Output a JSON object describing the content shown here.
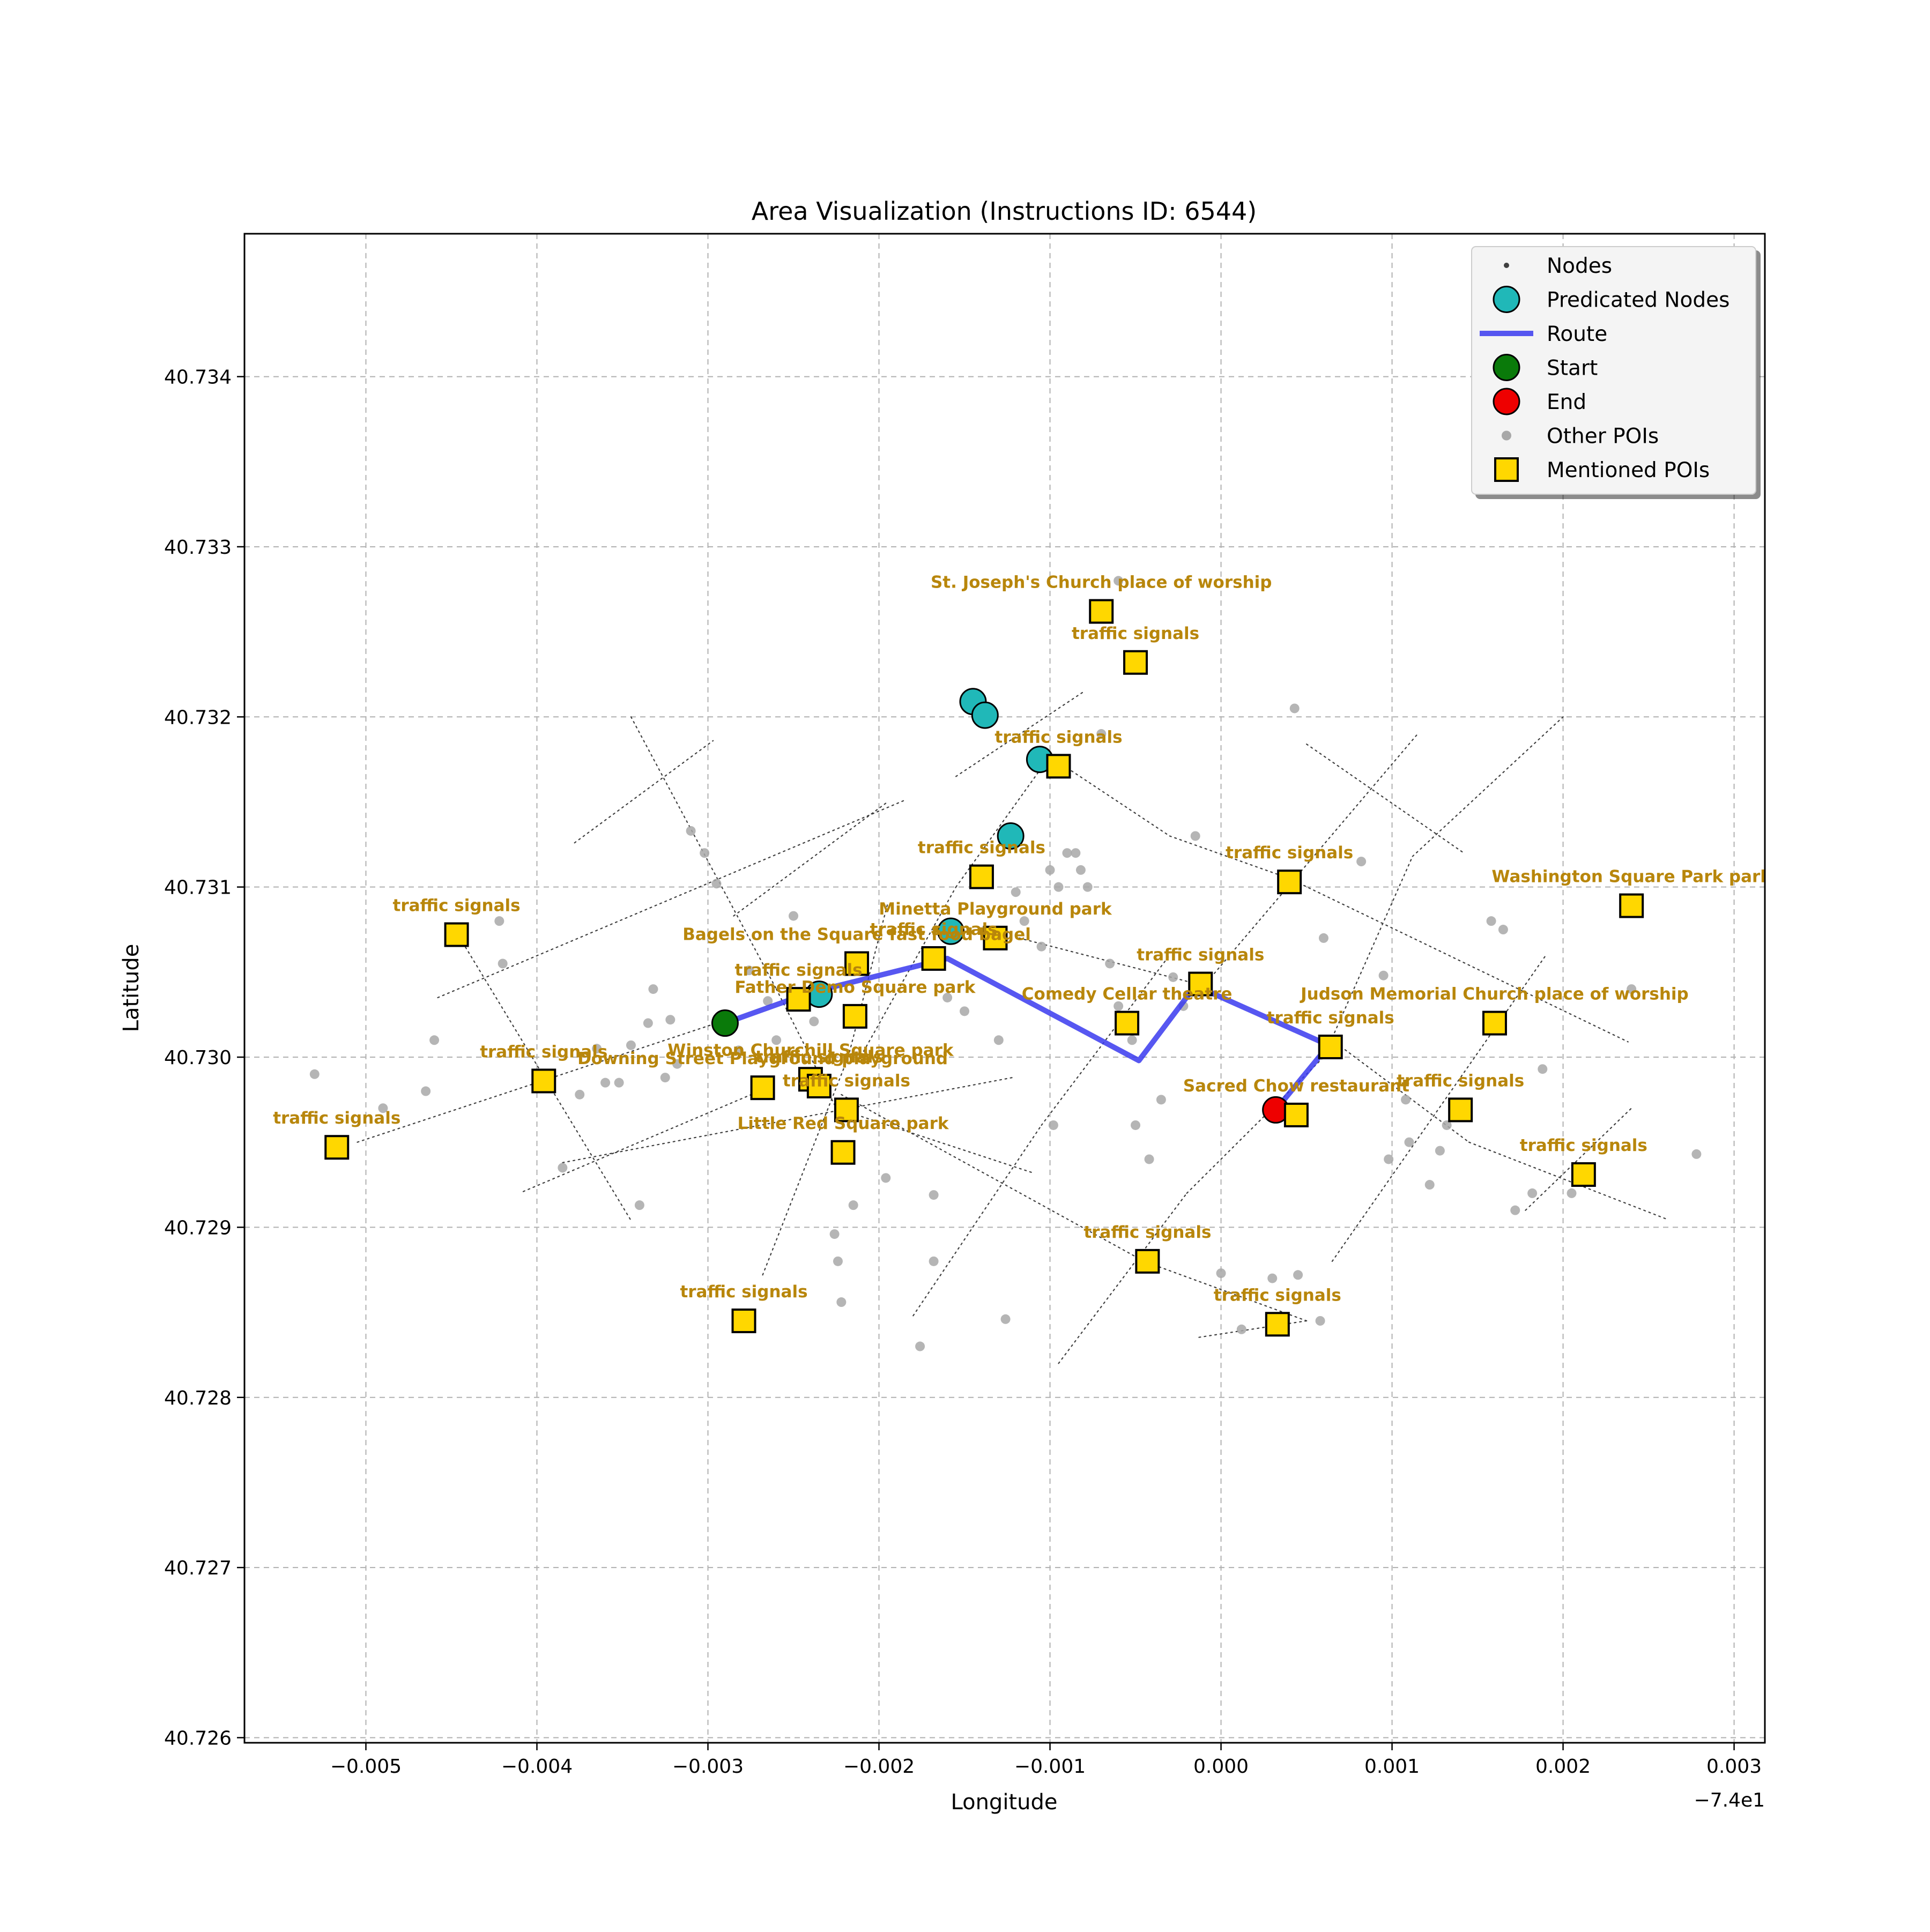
{
  "title": "Area Visualization (Instructions ID: 6544)",
  "xlabel": "Longitude",
  "ylabel": "Latitude",
  "offset_label": "−7.4e1",
  "x_ticks": [
    {
      "value": -0.005,
      "label": "−0.005"
    },
    {
      "value": -0.004,
      "label": "−0.004"
    },
    {
      "value": -0.003,
      "label": "−0.003"
    },
    {
      "value": -0.002,
      "label": "−0.002"
    },
    {
      "value": -0.001,
      "label": "−0.001"
    },
    {
      "value": 0.0,
      "label": "0.000"
    },
    {
      "value": 0.001,
      "label": "0.001"
    },
    {
      "value": 0.002,
      "label": "0.002"
    },
    {
      "value": 0.003,
      "label": "0.003"
    }
  ],
  "y_ticks": [
    {
      "value": 40.726,
      "label": "40.726"
    },
    {
      "value": 40.727,
      "label": "40.727"
    },
    {
      "value": 40.728,
      "label": "40.728"
    },
    {
      "value": 40.729,
      "label": "40.729"
    },
    {
      "value": 40.73,
      "label": "40.730"
    },
    {
      "value": 40.731,
      "label": "40.731"
    },
    {
      "value": 40.732,
      "label": "40.732"
    },
    {
      "value": 40.733,
      "label": "40.733"
    },
    {
      "value": 40.734,
      "label": "40.734"
    }
  ],
  "legend": [
    {
      "key": "nodes",
      "label": "Nodes"
    },
    {
      "key": "predicated",
      "label": "Predicated Nodes"
    },
    {
      "key": "route",
      "label": "Route"
    },
    {
      "key": "start",
      "label": "Start"
    },
    {
      "key": "end",
      "label": "End"
    },
    {
      "key": "other",
      "label": "Other POIs"
    },
    {
      "key": "mentioned",
      "label": "Mentioned POIs"
    }
  ],
  "colors": {
    "route": "#3a3aee",
    "predicated": "#20b8b8",
    "start": "#0a7a0a",
    "end": "#ee0000",
    "mentioned": "#ffd700",
    "poi_label": "#b8860b",
    "other": "#a8a8a8",
    "node": "#404040"
  },
  "chart_data": {
    "type": "map",
    "x_offset": -74.0,
    "xlim": [
      -0.00571,
      0.00318
    ],
    "ylim": [
      40.72597,
      40.73484
    ],
    "grid": true,
    "legend_position": "top-right",
    "streets": [
      [
        [
          -0.00458,
          40.73035
        ],
        [
          -0.00185,
          40.73151
        ]
      ],
      [
        [
          -0.00505,
          40.7295
        ],
        [
          -0.00295,
          40.7302
        ]
      ],
      [
        [
          -0.00408,
          40.72921
        ],
        [
          -0.0027,
          40.7298
        ]
      ],
      [
        [
          -0.00385,
          40.72938
        ],
        [
          -0.00122,
          40.72988
        ]
      ],
      [
        [
          -0.00378,
          40.73126
        ],
        [
          -0.00297,
          40.73186
        ]
      ],
      [
        [
          -0.00345,
          40.732
        ],
        [
          -0.0026,
          40.7304
        ]
      ],
      [
        [
          -0.0026,
          40.7304
        ],
        [
          -0.00225,
          40.7297
        ]
      ],
      [
        [
          -0.00225,
          40.7297
        ],
        [
          -0.0011,
          40.72932
        ]
      ],
      [
        [
          -0.00445,
          40.7307
        ],
        [
          -0.00345,
          40.72904
        ]
      ],
      [
        [
          -0.00285,
          40.73083
        ],
        [
          -0.00195,
          40.7315
        ]
      ],
      [
        [
          -0.00268,
          40.72872
        ],
        [
          -0.00218,
          40.73
        ]
      ],
      [
        [
          -0.00218,
          40.73
        ],
        [
          -0.00195,
          40.7309
        ]
      ],
      [
        [
          -0.00155,
          40.73165
        ],
        [
          -0.0008,
          40.73215
        ]
      ],
      [
        [
          -0.00212,
          40.72998
        ],
        [
          -0.00155,
          40.731
        ]
      ],
      [
        [
          -0.00155,
          40.731
        ],
        [
          -0.00105,
          40.7317
        ]
      ],
      [
        [
          -0.0009,
          40.7317
        ],
        [
          -0.0003,
          40.7313
        ]
      ],
      [
        [
          -0.0003,
          40.7313
        ],
        [
          0.0004,
          40.73105
        ]
      ],
      [
        [
          0.0004,
          40.73105
        ],
        [
          0.00238,
          40.73009
        ]
      ],
      [
        [
          -0.0018,
          40.72848
        ],
        [
          -0.00105,
          40.7296
        ]
      ],
      [
        [
          -0.00105,
          40.7296
        ],
        [
          -0.0003,
          40.7306
        ]
      ],
      [
        [
          -0.00095,
          40.7282
        ],
        [
          -0.0002,
          40.7292
        ]
      ],
      [
        [
          -0.0002,
          40.7292
        ],
        [
          0.0003,
          40.7297
        ]
      ],
      [
        [
          0.0003,
          40.7297
        ],
        [
          0.0006,
          40.73
        ]
      ],
      [
        [
          0.0006,
          40.73
        ],
        [
          0.00112,
          40.73118
        ]
      ],
      [
        [
          0.00112,
          40.73118
        ],
        [
          0.002,
          40.732
        ]
      ],
      [
        [
          -0.00222,
          40.72978
        ],
        [
          -0.00045,
          40.7288
        ]
      ],
      [
        [
          -0.00045,
          40.7288
        ],
        [
          0.0005,
          40.72845
        ]
      ],
      [
        [
          0.0005,
          40.72845
        ],
        [
          -0.00015,
          40.72835
        ]
      ],
      [
        [
          0.00065,
          40.7301
        ],
        [
          0.00145,
          40.7295
        ]
      ],
      [
        [
          0.00145,
          40.7295
        ],
        [
          0.0026,
          40.72905
        ]
      ],
      [
        [
          0.00065,
          40.7288
        ],
        [
          0.0019,
          40.7306
        ]
      ],
      [
        [
          0.00178,
          40.7291
        ],
        [
          0.0024,
          40.7297
        ]
      ],
      [
        [
          0.0005,
          40.73184
        ],
        [
          0.00142,
          40.7312
        ]
      ],
      [
        [
          -0.00118,
          40.7307
        ],
        [
          -0.0001,
          40.73042
        ]
      ],
      [
        [
          -0.0001,
          40.73042
        ],
        [
          0.00115,
          40.7319
        ]
      ]
    ],
    "route": [
      [
        -0.0029,
        40.7302
      ],
      [
        -0.0024,
        40.73038
      ],
      [
        -0.0016,
        40.73058
      ],
      [
        -0.00048,
        40.72998
      ],
      [
        -0.00015,
        40.73042
      ],
      [
        0.00063,
        40.73007
      ],
      [
        0.00032,
        40.72969
      ]
    ],
    "predicated_nodes": [
      [
        -0.00145,
        40.73209
      ],
      [
        -0.00138,
        40.73201
      ],
      [
        -0.00106,
        40.73175
      ],
      [
        -0.00123,
        40.7313
      ],
      [
        -0.00158,
        40.73074
      ],
      [
        -0.00235,
        40.73037
      ]
    ],
    "start": [
      -0.0029,
      40.7302
    ],
    "end": [
      0.00032,
      40.72969
    ],
    "other_pois": [
      [
        -0.0053,
        40.7299
      ],
      [
        -0.0049,
        40.7297
      ],
      [
        -0.00465,
        40.7298
      ],
      [
        -0.0046,
        40.7301
      ],
      [
        -0.0042,
        40.73055
      ],
      [
        -0.00422,
        40.7308
      ],
      [
        -0.00385,
        40.72935
      ],
      [
        -0.00375,
        40.72978
      ],
      [
        -0.00365,
        40.73005
      ],
      [
        -0.0036,
        40.72985
      ],
      [
        -0.00352,
        40.72985
      ],
      [
        -0.00345,
        40.73007
      ],
      [
        -0.0034,
        40.72913
      ],
      [
        -0.00335,
        40.7302
      ],
      [
        -0.00332,
        40.7304
      ],
      [
        -0.00325,
        40.72988
      ],
      [
        -0.00322,
        40.73022
      ],
      [
        -0.00318,
        40.72996
      ],
      [
        -0.0031,
        40.73133
      ],
      [
        -0.00302,
        40.7312
      ],
      [
        -0.00295,
        40.73102
      ],
      [
        -0.00282,
        40.73004
      ],
      [
        -0.00276,
        40.73051
      ],
      [
        -0.00265,
        40.73033
      ],
      [
        -0.0026,
        40.7301
      ],
      [
        -0.0025,
        40.73083
      ],
      [
        -0.00238,
        40.73021
      ],
      [
        -0.00226,
        40.72896
      ],
      [
        -0.00224,
        40.7288
      ],
      [
        -0.00222,
        40.72856
      ],
      [
        -0.00215,
        40.72913
      ],
      [
        -0.00196,
        40.72929
      ],
      [
        -0.00176,
        40.7283
      ],
      [
        -0.00168,
        40.72919
      ],
      [
        -0.00168,
        40.7288
      ],
      [
        -0.0016,
        40.73035
      ],
      [
        -0.0015,
        40.73027
      ],
      [
        -0.0013,
        40.7301
      ],
      [
        -0.00126,
        40.72846
      ],
      [
        -0.0012,
        40.73097
      ],
      [
        -0.00115,
        40.7308
      ],
      [
        -0.00105,
        40.73065
      ],
      [
        -0.001,
        40.7311
      ],
      [
        -0.00095,
        40.731
      ],
      [
        -0.00098,
        40.7296
      ],
      [
        -0.0009,
        40.7312
      ],
      [
        -0.00085,
        40.7312
      ],
      [
        -0.00082,
        40.7311
      ],
      [
        -0.00078,
        40.731
      ],
      [
        -0.0007,
        40.7319
      ],
      [
        -0.0006,
        40.7328
      ],
      [
        -0.00065,
        40.73055
      ],
      [
        -0.0006,
        40.7303
      ],
      [
        -0.00052,
        40.7301
      ],
      [
        -0.0005,
        40.7296
      ],
      [
        -0.00042,
        40.7294
      ],
      [
        -0.00035,
        40.72975
      ],
      [
        -0.00028,
        40.73047
      ],
      [
        -0.00022,
        40.7303
      ],
      [
        -0.00015,
        40.7313
      ],
      [
        0.0,
        40.72873
      ],
      [
        0.00012,
        40.7284
      ],
      [
        0.0003,
        40.7287
      ],
      [
        0.00045,
        40.72872
      ],
      [
        0.00058,
        40.72845
      ],
      [
        0.00043,
        40.73205
      ],
      [
        0.0006,
        40.7307
      ],
      [
        0.00082,
        40.73115
      ],
      [
        0.00095,
        40.73048
      ],
      [
        0.00098,
        40.7294
      ],
      [
        0.00108,
        40.72975
      ],
      [
        0.0011,
        40.7295
      ],
      [
        0.00122,
        40.72925
      ],
      [
        0.00128,
        40.72945
      ],
      [
        0.00132,
        40.7296
      ],
      [
        0.00158,
        40.7308
      ],
      [
        0.00165,
        40.73075
      ],
      [
        0.00172,
        40.7291
      ],
      [
        0.00182,
        40.7292
      ],
      [
        0.00188,
        40.72993
      ],
      [
        0.00205,
        40.7292
      ],
      [
        0.0024,
        40.7304
      ],
      [
        0.00278,
        40.72943
      ]
    ],
    "mentioned_pois": [
      {
        "label": "St. Joseph's Church place of worship",
        "lon": -0.0007,
        "lat": 40.73262
      },
      {
        "label": "traffic signals",
        "lon": -0.0005,
        "lat": 40.73232
      },
      {
        "label": "traffic signals",
        "lon": -0.00095,
        "lat": 40.73171
      },
      {
        "label": "traffic signals",
        "lon": -0.0014,
        "lat": 40.73106
      },
      {
        "label": "traffic signals",
        "lon": 0.0004,
        "lat": 40.73103
      },
      {
        "label": "Washington Square Park   park",
        "lon": 0.0024,
        "lat": 40.73089
      },
      {
        "label": "traffic signals",
        "lon": -0.00447,
        "lat": 40.73072
      },
      {
        "label": "Minetta Playground   park",
        "lon": -0.00132,
        "lat": 40.7307
      },
      {
        "label": "traffic signals",
        "lon": -0.00168,
        "lat": 40.73058
      },
      {
        "label": "Bagels on the Square fast food bagel",
        "lon": -0.00213,
        "lat": 40.73055
      },
      {
        "label": "traffic signals",
        "lon": -0.00012,
        "lat": 40.73043
      },
      {
        "label": "traffic signals",
        "lon": -0.00247,
        "lat": 40.73034
      },
      {
        "label": "Father Demo Square   park",
        "lon": -0.00214,
        "lat": 40.73024
      },
      {
        "label": "Comedy Cellar theatre",
        "lon": -0.00055,
        "lat": 40.7302
      },
      {
        "label": "Judson Memorial Church place of worship",
        "lon": 0.0016,
        "lat": 40.7302
      },
      {
        "label": "traffic signals",
        "lon": 0.00064,
        "lat": 40.73006
      },
      {
        "label": "traffic signals",
        "lon": -0.00396,
        "lat": 40.72986
      },
      {
        "label": "Winston Churchill Square   park",
        "lon": -0.0024,
        "lat": 40.72987
      },
      {
        "label": "Downing Street Playground playground",
        "lon": -0.00268,
        "lat": 40.72982
      },
      {
        "label": "traffic signals",
        "lon": -0.00235,
        "lat": 40.72983
      },
      {
        "label": "Sacred Chow restaurant",
        "lon": 0.00044,
        "lat": 40.72966
      },
      {
        "label": "traffic signals",
        "lon": 0.0014,
        "lat": 40.72969
      },
      {
        "label": "traffic signals",
        "lon": -0.00219,
        "lat": 40.72969
      },
      {
        "label": "Little Red Square   park",
        "lon": -0.00221,
        "lat": 40.72944
      },
      {
        "label": "traffic signals",
        "lon": -0.00517,
        "lat": 40.72947
      },
      {
        "label": "traffic signals",
        "lon": 0.00212,
        "lat": 40.72931
      },
      {
        "label": "traffic signals",
        "lon": -0.00043,
        "lat": 40.7288
      },
      {
        "label": "traffic signals",
        "lon": 0.00033,
        "lat": 40.72843
      },
      {
        "label": "traffic signals",
        "lon": -0.00279,
        "lat": 40.72845
      }
    ]
  }
}
